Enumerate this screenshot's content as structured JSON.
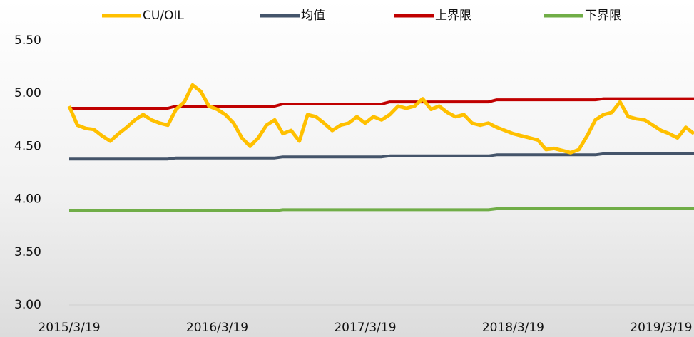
{
  "chart_data": {
    "type": "line",
    "categories": [
      "2015/3/19",
      null,
      null,
      null,
      null,
      null,
      null,
      null,
      null,
      null,
      null,
      null,
      null,
      null,
      null,
      null,
      null,
      null,
      "2016/3/19",
      null,
      null,
      null,
      null,
      null,
      null,
      null,
      null,
      null,
      null,
      null,
      null,
      null,
      null,
      null,
      null,
      null,
      "2017/3/19",
      null,
      null,
      null,
      null,
      null,
      null,
      null,
      null,
      null,
      null,
      null,
      null,
      null,
      null,
      null,
      null,
      null,
      "2018/3/19",
      null,
      null,
      null,
      null,
      null,
      null,
      null,
      null,
      null,
      null,
      null,
      null,
      null,
      null,
      null,
      null,
      null,
      "2019/3/19",
      null,
      null,
      null,
      null
    ],
    "series": [
      {
        "name": "CU/OIL",
        "color": "#FFC000",
        "values": [
          4.88,
          4.7,
          4.67,
          4.66,
          4.6,
          4.55,
          4.62,
          4.68,
          4.75,
          4.8,
          4.75,
          4.72,
          4.7,
          4.85,
          4.92,
          5.08,
          5.02,
          4.88,
          4.85,
          4.8,
          4.72,
          4.58,
          4.5,
          4.58,
          4.7,
          4.75,
          4.62,
          4.65,
          4.55,
          4.8,
          4.78,
          4.72,
          4.65,
          4.7,
          4.72,
          4.78,
          4.72,
          4.78,
          4.75,
          4.8,
          4.88,
          4.86,
          4.88,
          4.95,
          4.85,
          4.88,
          4.82,
          4.78,
          4.8,
          4.72,
          4.7,
          4.72,
          4.68,
          4.65,
          4.62,
          4.6,
          4.58,
          4.56,
          4.47,
          4.48,
          4.46,
          4.44,
          4.47,
          4.6,
          4.75,
          4.8,
          4.82,
          4.92,
          4.78,
          4.76,
          4.75,
          4.7,
          4.65,
          4.62,
          4.58,
          4.68,
          4.62
        ]
      },
      {
        "name": "均值",
        "color": "#44546A",
        "values": [
          4.38,
          4.38,
          4.38,
          4.38,
          4.38,
          4.38,
          4.38,
          4.38,
          4.38,
          4.38,
          4.38,
          4.38,
          4.38,
          4.39,
          4.39,
          4.39,
          4.39,
          4.39,
          4.39,
          4.39,
          4.39,
          4.39,
          4.39,
          4.39,
          4.39,
          4.39,
          4.4,
          4.4,
          4.4,
          4.4,
          4.4,
          4.4,
          4.4,
          4.4,
          4.4,
          4.4,
          4.4,
          4.4,
          4.4,
          4.41,
          4.41,
          4.41,
          4.41,
          4.41,
          4.41,
          4.41,
          4.41,
          4.41,
          4.41,
          4.41,
          4.41,
          4.41,
          4.42,
          4.42,
          4.42,
          4.42,
          4.42,
          4.42,
          4.42,
          4.42,
          4.42,
          4.42,
          4.42,
          4.42,
          4.42,
          4.43,
          4.43,
          4.43,
          4.43,
          4.43,
          4.43,
          4.43,
          4.43,
          4.43,
          4.43,
          4.43,
          4.43
        ]
      },
      {
        "name": "上界限",
        "color": "#C00000",
        "values": [
          4.86,
          4.86,
          4.86,
          4.86,
          4.86,
          4.86,
          4.86,
          4.86,
          4.86,
          4.86,
          4.86,
          4.86,
          4.86,
          4.88,
          4.88,
          4.88,
          4.88,
          4.88,
          4.88,
          4.88,
          4.88,
          4.88,
          4.88,
          4.88,
          4.88,
          4.88,
          4.9,
          4.9,
          4.9,
          4.9,
          4.9,
          4.9,
          4.9,
          4.9,
          4.9,
          4.9,
          4.9,
          4.9,
          4.9,
          4.92,
          4.92,
          4.92,
          4.92,
          4.92,
          4.92,
          4.92,
          4.92,
          4.92,
          4.92,
          4.92,
          4.92,
          4.92,
          4.94,
          4.94,
          4.94,
          4.94,
          4.94,
          4.94,
          4.94,
          4.94,
          4.94,
          4.94,
          4.94,
          4.94,
          4.94,
          4.95,
          4.95,
          4.95,
          4.95,
          4.95,
          4.95,
          4.95,
          4.95,
          4.95,
          4.95,
          4.95,
          4.95
        ]
      },
      {
        "name": "下界限",
        "color": "#70AD47",
        "values": [
          3.89,
          3.89,
          3.89,
          3.89,
          3.89,
          3.89,
          3.89,
          3.89,
          3.89,
          3.89,
          3.89,
          3.89,
          3.89,
          3.89,
          3.89,
          3.89,
          3.89,
          3.89,
          3.89,
          3.89,
          3.89,
          3.89,
          3.89,
          3.89,
          3.89,
          3.89,
          3.9,
          3.9,
          3.9,
          3.9,
          3.9,
          3.9,
          3.9,
          3.9,
          3.9,
          3.9,
          3.9,
          3.9,
          3.9,
          3.9,
          3.9,
          3.9,
          3.9,
          3.9,
          3.9,
          3.9,
          3.9,
          3.9,
          3.9,
          3.9,
          3.9,
          3.9,
          3.91,
          3.91,
          3.91,
          3.91,
          3.91,
          3.91,
          3.91,
          3.91,
          3.91,
          3.91,
          3.91,
          3.91,
          3.91,
          3.91,
          3.91,
          3.91,
          3.91,
          3.91,
          3.91,
          3.91,
          3.91,
          3.91,
          3.91,
          3.91,
          3.91
        ]
      }
    ],
    "ylim": [
      3.0,
      5.5
    ],
    "yticks": [
      {
        "value": 3.0,
        "label": "3.00"
      },
      {
        "value": 3.5,
        "label": "3.50"
      },
      {
        "value": 4.0,
        "label": "4.00"
      },
      {
        "value": 4.5,
        "label": "4.50"
      },
      {
        "value": 5.0,
        "label": "5.00"
      },
      {
        "value": 5.5,
        "label": "5.50"
      }
    ],
    "grid": false,
    "legend": "top"
  }
}
